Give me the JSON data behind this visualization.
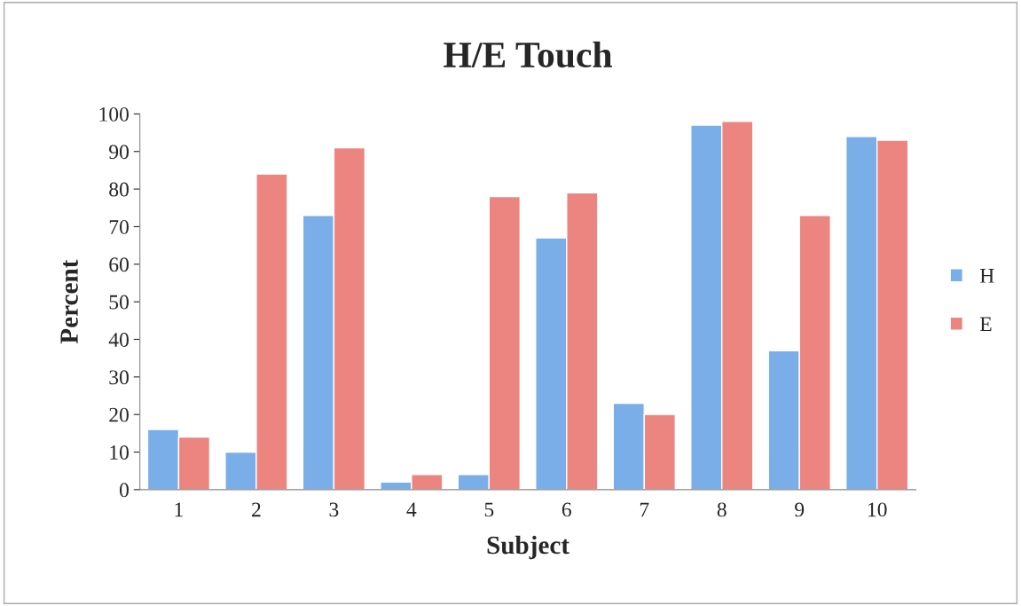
{
  "chart_data": {
    "type": "bar",
    "title": "H/E Touch",
    "xlabel": "Subject",
    "ylabel": "Percent",
    "categories": [
      "1",
      "2",
      "3",
      "4",
      "5",
      "6",
      "7",
      "8",
      "9",
      "10"
    ],
    "series": [
      {
        "name": "H",
        "color": "#7aaee8",
        "values": [
          16,
          10,
          73,
          2,
          4,
          67,
          23,
          97,
          37,
          94
        ]
      },
      {
        "name": "E",
        "color": "#ec8580",
        "values": [
          14,
          84,
          91,
          4,
          78,
          79,
          20,
          98,
          73,
          93
        ]
      }
    ],
    "ylim": [
      0,
      100
    ],
    "yticks": [
      0,
      10,
      20,
      30,
      40,
      50,
      60,
      70,
      80,
      90,
      100
    ],
    "grid": false,
    "legend": "right"
  }
}
